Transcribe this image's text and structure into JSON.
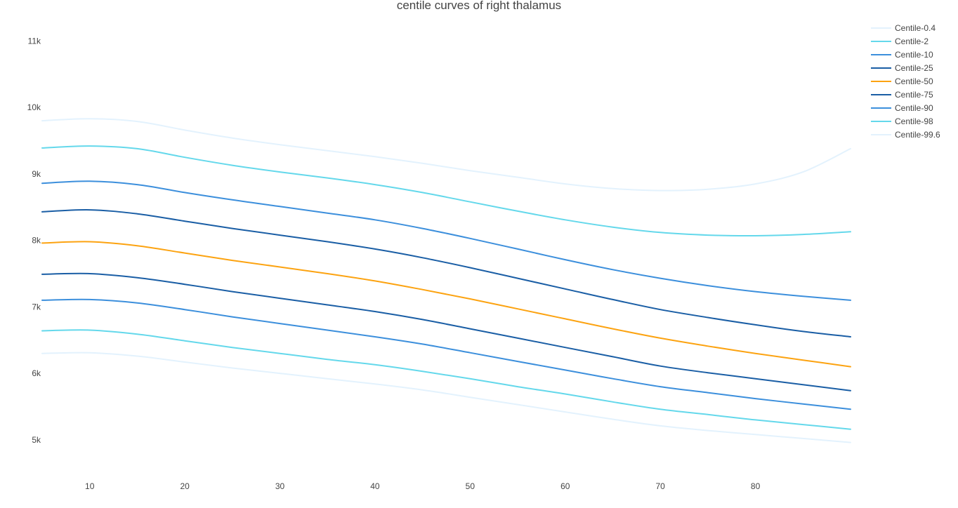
{
  "chart_data": {
    "type": "line",
    "title": "centile curves of right thalamus",
    "xlabel": "",
    "ylabel": "",
    "xlim": [
      5,
      90
    ],
    "ylim": [
      4650,
      11300
    ],
    "x_ticks": [
      10,
      20,
      30,
      40,
      50,
      60,
      70,
      80
    ],
    "x_tick_labels": [
      "10",
      "20",
      "30",
      "40",
      "50",
      "60",
      "70",
      "80"
    ],
    "y_ticks": [
      5000,
      6000,
      7000,
      8000,
      9000,
      10000,
      11000
    ],
    "y_tick_labels": [
      "5k",
      "6k",
      "7k",
      "8k",
      "9k",
      "10k",
      "11k"
    ],
    "grid": false,
    "legend_position": "top-right",
    "x": [
      5,
      10,
      15,
      20,
      25,
      30,
      35,
      40,
      45,
      50,
      55,
      60,
      65,
      70,
      75,
      80,
      85,
      90
    ],
    "series": [
      {
        "name": "Centile-0.4",
        "color": "#e3f2fd",
        "values": [
          6300,
          6310,
          6260,
          6170,
          6080,
          6000,
          5920,
          5840,
          5750,
          5640,
          5530,
          5420,
          5310,
          5210,
          5140,
          5080,
          5020,
          4960
        ]
      },
      {
        "name": "Centile-2",
        "color": "#64d8eb",
        "values": [
          6640,
          6650,
          6590,
          6490,
          6390,
          6300,
          6210,
          6130,
          6030,
          5920,
          5800,
          5690,
          5570,
          5460,
          5380,
          5300,
          5230,
          5160
        ]
      },
      {
        "name": "Centile-10",
        "color": "#3c8fdc",
        "values": [
          7100,
          7110,
          7060,
          6960,
          6850,
          6750,
          6650,
          6550,
          6440,
          6310,
          6180,
          6050,
          5920,
          5800,
          5710,
          5620,
          5540,
          5460
        ]
      },
      {
        "name": "Centile-25",
        "color": "#1a5ea5",
        "values": [
          7490,
          7500,
          7440,
          7340,
          7230,
          7130,
          7030,
          6930,
          6810,
          6670,
          6530,
          6390,
          6250,
          6110,
          6010,
          5920,
          5830,
          5740
        ]
      },
      {
        "name": "Centile-50",
        "color": "#fca311",
        "values": [
          7960,
          7980,
          7920,
          7810,
          7700,
          7600,
          7500,
          7390,
          7260,
          7120,
          6970,
          6820,
          6670,
          6530,
          6410,
          6300,
          6200,
          6100
        ]
      },
      {
        "name": "Centile-75",
        "color": "#1a5ea5",
        "values": [
          8430,
          8460,
          8400,
          8290,
          8180,
          8080,
          7980,
          7870,
          7740,
          7590,
          7430,
          7270,
          7110,
          6960,
          6840,
          6730,
          6630,
          6550
        ]
      },
      {
        "name": "Centile-90",
        "color": "#3c8fdc",
        "values": [
          8860,
          8890,
          8840,
          8720,
          8610,
          8510,
          8410,
          8310,
          8180,
          8030,
          7870,
          7710,
          7560,
          7430,
          7320,
          7230,
          7160,
          7100
        ]
      },
      {
        "name": "Centile-98",
        "color": "#64d8eb",
        "values": [
          9390,
          9420,
          9380,
          9250,
          9130,
          9030,
          8940,
          8840,
          8720,
          8580,
          8440,
          8310,
          8200,
          8120,
          8080,
          8070,
          8090,
          8130
        ]
      },
      {
        "name": "Centile-99.6",
        "color": "#e3f2fd",
        "values": [
          9800,
          9830,
          9790,
          9660,
          9540,
          9440,
          9350,
          9260,
          9160,
          9050,
          8950,
          8850,
          8780,
          8750,
          8770,
          8850,
          9030,
          9380
        ]
      }
    ]
  }
}
